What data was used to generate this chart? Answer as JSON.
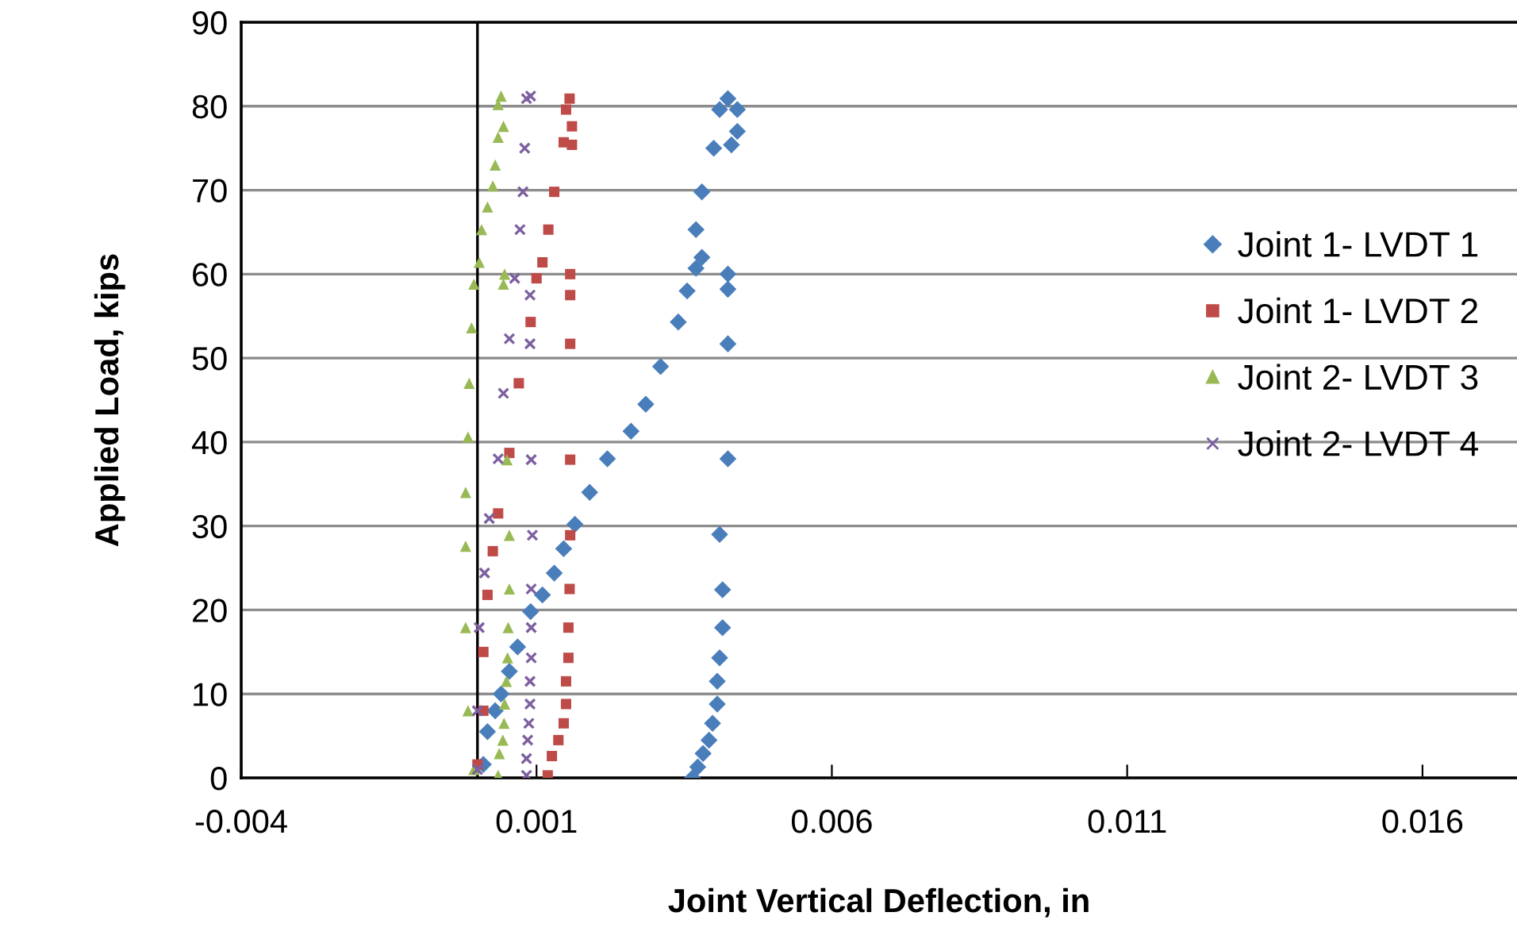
{
  "chart_data": {
    "type": "scatter",
    "xlabel": "Joint Vertical Deflection, in",
    "ylabel": "Applied Load, kips",
    "xlim": [
      -0.004,
      0.0176
    ],
    "xticks": [
      -0.004,
      0.001,
      0.006,
      0.011,
      0.016
    ],
    "ylim": [
      0,
      90
    ],
    "yticks": [
      0,
      10,
      20,
      30,
      40,
      50,
      60,
      70,
      80,
      90
    ],
    "grid": "y",
    "legend": "right",
    "ref_lines": [
      {
        "axis": "x",
        "value": 0,
        "color": "#000000"
      }
    ],
    "series": [
      {
        "name": "Joint 1- LVDT 1",
        "color": "#4a7ebb",
        "marker": "diamond",
        "x": [
          0.0001,
          0.00017,
          0.0003,
          0.0004,
          0.00054,
          0.00068,
          0.0009,
          0.0011,
          0.0013,
          0.00146,
          0.00165,
          0.0019,
          0.0022,
          0.0026,
          0.00285,
          0.0031,
          0.0034,
          0.00355,
          0.0037,
          0.0038,
          0.0037,
          0.0038,
          0.004,
          0.0041,
          0.00424,
          0.0044,
          0.0044,
          0.0043,
          0.00424,
          0.00424,
          0.00424,
          0.00424,
          0.0041,
          0.00415,
          0.00415,
          0.0041,
          0.00406,
          0.00406,
          0.00398,
          0.00392,
          0.00382,
          0.00373,
          0.00364
        ],
        "values": [
          1.6,
          5.5,
          8,
          10,
          12.7,
          15.6,
          19.8,
          21.8,
          24.4,
          27.3,
          30.2,
          34,
          38,
          41.3,
          44.5,
          49,
          54.3,
          58,
          60.7,
          62,
          65.3,
          69.8,
          75,
          79.6,
          80.9,
          79.6,
          77,
          75.4,
          58.2,
          60,
          51.7,
          38,
          29,
          22.4,
          17.9,
          14.3,
          11.5,
          8.8,
          6.5,
          4.5,
          2.9,
          1.3,
          0
        ]
      },
      {
        "name": "Joint 1- LVDT 2",
        "color": "#be4b48",
        "marker": "square",
        "x": [
          0.0,
          0.0001,
          0.0001,
          0.00017,
          0.00026,
          0.00035,
          0.00054,
          0.0007,
          0.0009,
          0.001,
          0.0011,
          0.0012,
          0.0013,
          0.00146,
          0.0015,
          0.00156,
          0.0016,
          0.0016,
          0.00119,
          0.00126,
          0.00137,
          0.00146,
          0.0015,
          0.0015,
          0.00154,
          0.00154,
          0.00156,
          0.00157,
          0.00157,
          0.00157,
          0.00157,
          0.00157
        ],
        "values": [
          1.6,
          8,
          15,
          21.8,
          27,
          31.5,
          38.7,
          47,
          54.3,
          59.5,
          61.4,
          65.3,
          69.8,
          75.7,
          79.6,
          80.9,
          77.6,
          75.4,
          0.3,
          2.6,
          4.5,
          6.5,
          8.8,
          11.5,
          14.3,
          17.9,
          22.5,
          28.9,
          37.9,
          51.7,
          57.5,
          60
        ]
      },
      {
        "name": "Joint 2- LVDT 3",
        "color": "#98b954",
        "marker": "triangle",
        "x": [
          -6e-05,
          -0.00016,
          -0.0002,
          -0.0002,
          -0.0002,
          -0.00016,
          -0.00014,
          -0.0001,
          -6e-05,
          3e-05,
          7e-05,
          0.00017,
          0.00026,
          0.0003,
          0.00035,
          0.00035,
          0.0004,
          0.00044,
          0.00035,
          0.00037,
          0.00043,
          0.00045,
          0.00046,
          0.00049,
          0.00051,
          0.00052,
          0.00054,
          0.00054,
          0.0005,
          0.00044,
          0.00046
        ],
        "values": [
          1,
          8,
          17.9,
          27.6,
          34,
          40.6,
          47,
          53.6,
          58.8,
          61.4,
          65.3,
          68,
          70.5,
          73,
          76.3,
          80.2,
          81.2,
          77.6,
          0.3,
          2.9,
          4.5,
          6.5,
          8.8,
          11.5,
          14.3,
          17.9,
          22.5,
          28.9,
          37.9,
          58.8,
          60
        ]
      },
      {
        "name": "Joint 2- LVDT 4",
        "color": "#7d60a0",
        "marker": "cross",
        "x": [
          0.0,
          0.0,
          3e-05,
          0.00012,
          0.0002,
          0.00035,
          0.00044,
          0.00054,
          0.00063,
          0.00072,
          0.00077,
          0.0008,
          0.00083,
          0.0009,
          0.00089,
          0.00083,
          0.00083,
          0.00085,
          0.00087,
          0.00089,
          0.00089,
          0.00091,
          0.00091,
          0.00091,
          0.00093,
          0.00091,
          0.00089
        ],
        "values": [
          1,
          8,
          17.9,
          24.4,
          30.9,
          38,
          45.8,
          52.3,
          59.5,
          65.3,
          69.8,
          75,
          80.9,
          81.2,
          57.5,
          0.3,
          2.3,
          4.5,
          6.5,
          8.8,
          11.5,
          14.3,
          17.9,
          22.5,
          28.9,
          37.9,
          51.7
        ]
      }
    ]
  }
}
